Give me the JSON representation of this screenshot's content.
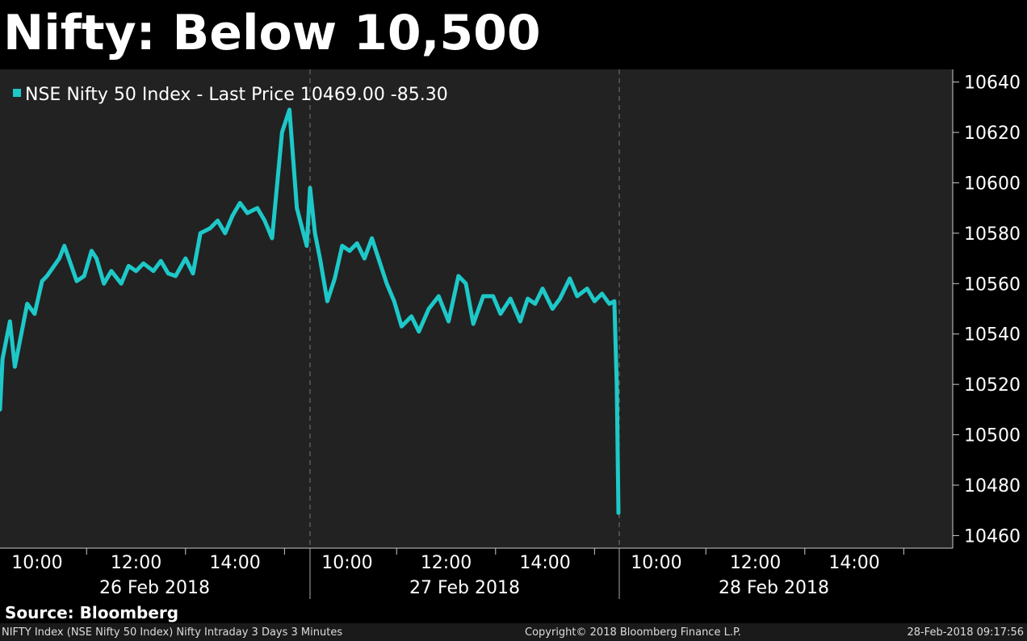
{
  "title": "Nifty: Below 10,500",
  "source": "Source: Bloomberg",
  "footer": {
    "left": "NIFTY Index (NSE Nifty 50 Index) Nifty Intraday 3 Days 3 Minutes",
    "middle": "Copyright© 2018 Bloomberg Finance L.P.",
    "right": "28-Feb-2018 09:17:56"
  },
  "colors": {
    "background": "#000000",
    "plot_background": "#222222",
    "series": "#1ec8c8"
  },
  "chart_data": {
    "type": "line",
    "legend": "NSE Nifty 50 Index - Last Price 10469.00 -85.30",
    "legend_position": "top-left",
    "ylim": [
      10455,
      10645
    ],
    "yticks": [
      10460,
      10480,
      10500,
      10520,
      10540,
      10560,
      10580,
      10600,
      10620,
      10640
    ],
    "y_axis_side": "right",
    "grid": "vertical dashed day separators",
    "days": [
      {
        "label": "26 Feb 2018",
        "ticks": [
          "10:00",
          "12:00",
          "14:00"
        ]
      },
      {
        "label": "27 Feb 2018",
        "ticks": [
          "10:00",
          "12:00",
          "14:00"
        ]
      },
      {
        "label": "28 Feb 2018",
        "ticks": [
          "10:00",
          "12:00",
          "14:00"
        ]
      }
    ],
    "series": [
      {
        "name": "NSE Nifty 50 Index",
        "x": [
          "26 Feb 09:15",
          "26 Feb 09:18",
          "26 Feb 09:27",
          "26 Feb 09:33",
          "26 Feb 09:48",
          "26 Feb 09:57",
          "26 Feb 10:06",
          "26 Feb 10:12",
          "26 Feb 10:27",
          "26 Feb 10:33",
          "26 Feb 10:48",
          "26 Feb 10:57",
          "26 Feb 11:06",
          "26 Feb 11:12",
          "26 Feb 11:21",
          "26 Feb 11:30",
          "26 Feb 11:42",
          "26 Feb 11:51",
          "26 Feb 12:00",
          "26 Feb 12:09",
          "26 Feb 12:21",
          "26 Feb 12:30",
          "26 Feb 12:39",
          "26 Feb 12:48",
          "26 Feb 13:00",
          "26 Feb 13:09",
          "26 Feb 13:18",
          "26 Feb 13:30",
          "26 Feb 13:39",
          "26 Feb 13:48",
          "26 Feb 13:57",
          "26 Feb 14:06",
          "26 Feb 14:15",
          "26 Feb 14:27",
          "26 Feb 14:36",
          "26 Feb 14:45",
          "26 Feb 14:57",
          "26 Feb 15:06",
          "26 Feb 15:15",
          "26 Feb 15:27",
          "27 Feb 09:15",
          "27 Feb 09:21",
          "27 Feb 09:27",
          "27 Feb 09:36",
          "27 Feb 09:45",
          "27 Feb 09:54",
          "27 Feb 10:03",
          "27 Feb 10:12",
          "27 Feb 10:21",
          "27 Feb 10:30",
          "27 Feb 10:36",
          "27 Feb 10:48",
          "27 Feb 10:57",
          "27 Feb 11:06",
          "27 Feb 11:18",
          "27 Feb 11:27",
          "27 Feb 11:39",
          "27 Feb 11:51",
          "27 Feb 12:03",
          "27 Feb 12:15",
          "27 Feb 12:24",
          "27 Feb 12:33",
          "27 Feb 12:45",
          "27 Feb 12:57",
          "27 Feb 13:06",
          "27 Feb 13:18",
          "27 Feb 13:30",
          "27 Feb 13:39",
          "27 Feb 13:48",
          "27 Feb 13:57",
          "27 Feb 14:09",
          "27 Feb 14:18",
          "27 Feb 14:30",
          "27 Feb 14:39",
          "27 Feb 14:51",
          "27 Feb 15:00",
          "27 Feb 15:09",
          "27 Feb 15:18",
          "27 Feb 15:24",
          "27 Feb 15:27",
          "27 Feb 15:29"
        ],
        "y": [
          10510,
          10530,
          10545,
          10527,
          10552,
          10548,
          10561,
          10563,
          10570,
          10575,
          10561,
          10563,
          10573,
          10570,
          10560,
          10565,
          10560,
          10567,
          10565,
          10568,
          10565,
          10569,
          10564,
          10563,
          10570,
          10564,
          10580,
          10582,
          10585,
          10580,
          10587,
          10592,
          10588,
          10590,
          10585,
          10578,
          10620,
          10629,
          10590,
          10575,
          10598,
          10580,
          10570,
          10553,
          10562,
          10575,
          10573,
          10576,
          10570,
          10578,
          10572,
          10560,
          10553,
          10543,
          10547,
          10541,
          10550,
          10555,
          10545,
          10563,
          10560,
          10544,
          10555,
          10555,
          10548,
          10554,
          10545,
          10554,
          10552,
          10558,
          10550,
          10554,
          10562,
          10555,
          10558,
          10553,
          10556,
          10552,
          10553,
          10520,
          10469
        ]
      }
    ]
  }
}
